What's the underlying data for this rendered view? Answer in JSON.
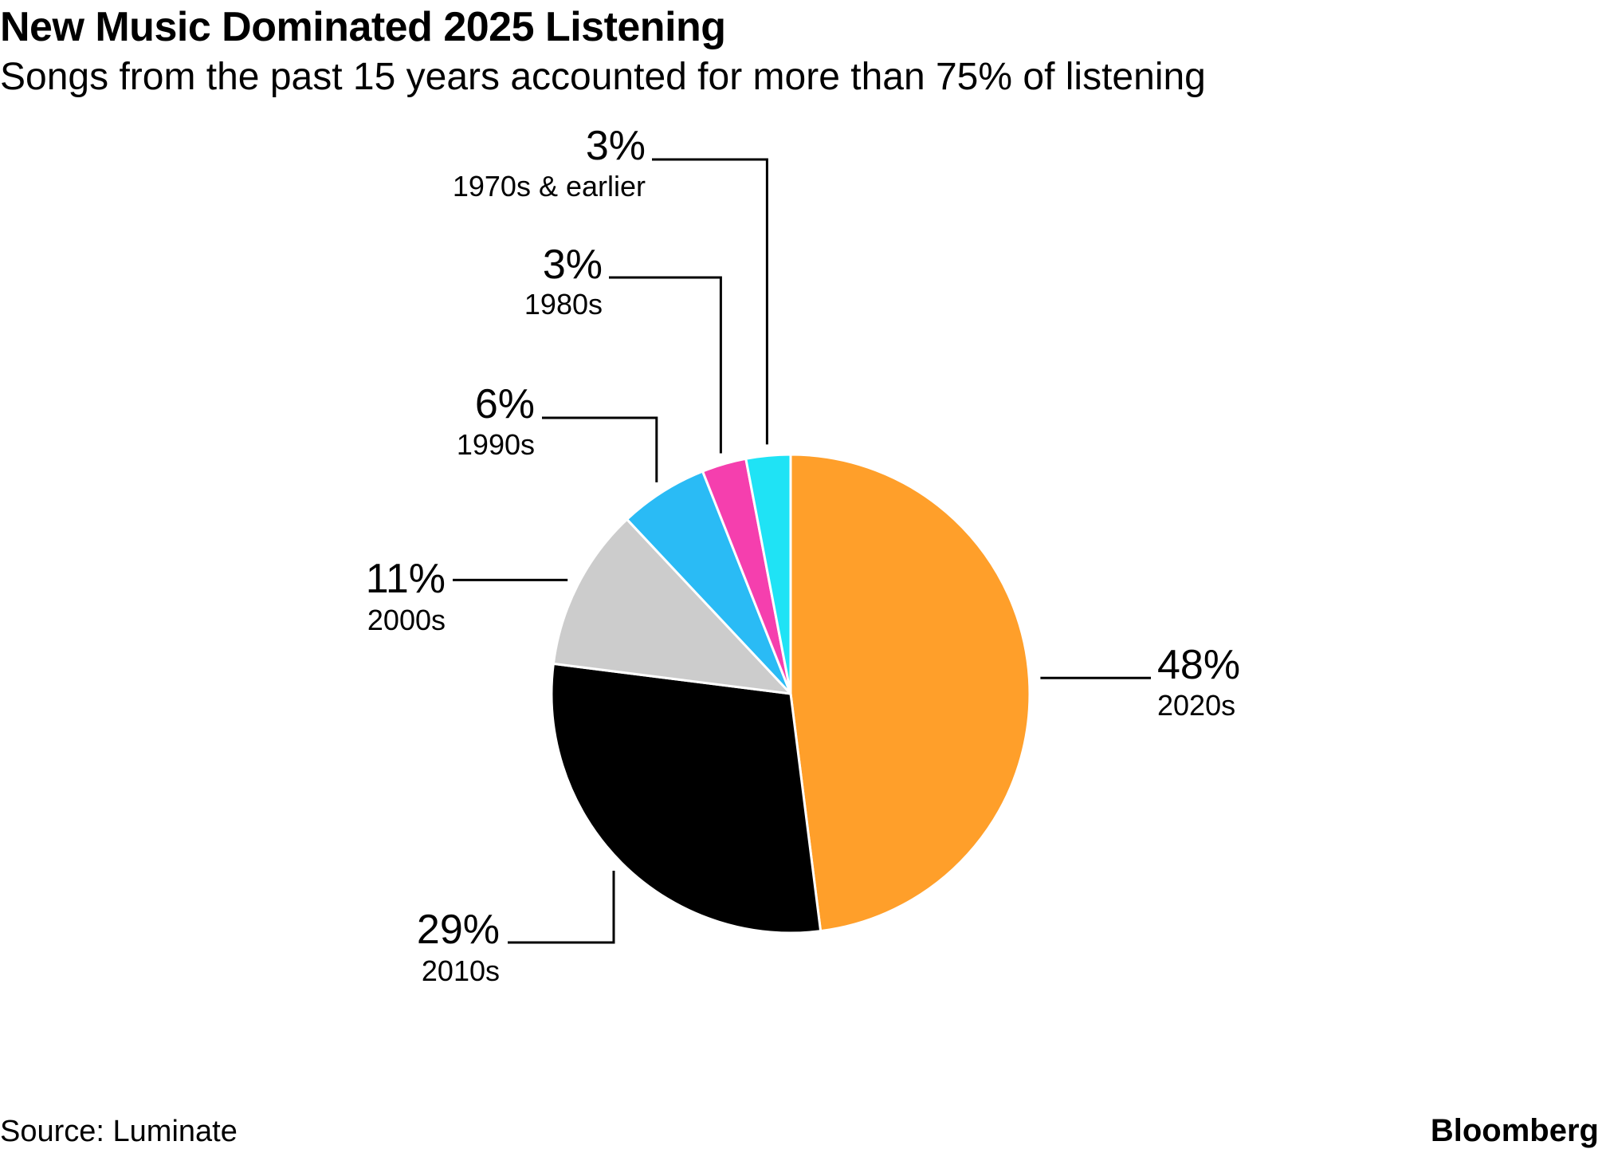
{
  "header": {
    "title": "New Music Dominated 2025 Listening",
    "subtitle": "Songs from the past 15 years accounted for more than 75% of listening"
  },
  "footer": {
    "source": "Source: Luminate",
    "brand": "Bloomberg"
  },
  "chart_data": {
    "type": "pie",
    "title": "New Music Dominated 2025 Listening",
    "subtitle": "Songs from the past 15 years accounted for more than 75% of listening",
    "start_angle_deg": 0,
    "direction": "clockwise",
    "slices": [
      {
        "key": "2020s",
        "label": "2020s",
        "value": 48,
        "display": "48%",
        "color": "#FF9F2A"
      },
      {
        "key": "2010s",
        "label": "2010s",
        "value": 29,
        "display": "29%",
        "color": "#000000"
      },
      {
        "key": "2000s",
        "label": "2000s",
        "value": 11,
        "display": "11%",
        "color": "#CCCCCC"
      },
      {
        "key": "1990s",
        "label": "1990s",
        "value": 6,
        "display": "6%",
        "color": "#2ABBF5"
      },
      {
        "key": "1980s",
        "label": "1980s",
        "value": 3,
        "display": "3%",
        "color": "#F53FAE"
      },
      {
        "key": "1970s-earlier",
        "label": "1970s & earlier",
        "value": 3,
        "display": "3%",
        "color": "#1FE3F5"
      }
    ],
    "note": "Displayed percentages are rounded; slice sizes follow the figure's underlying shares"
  }
}
